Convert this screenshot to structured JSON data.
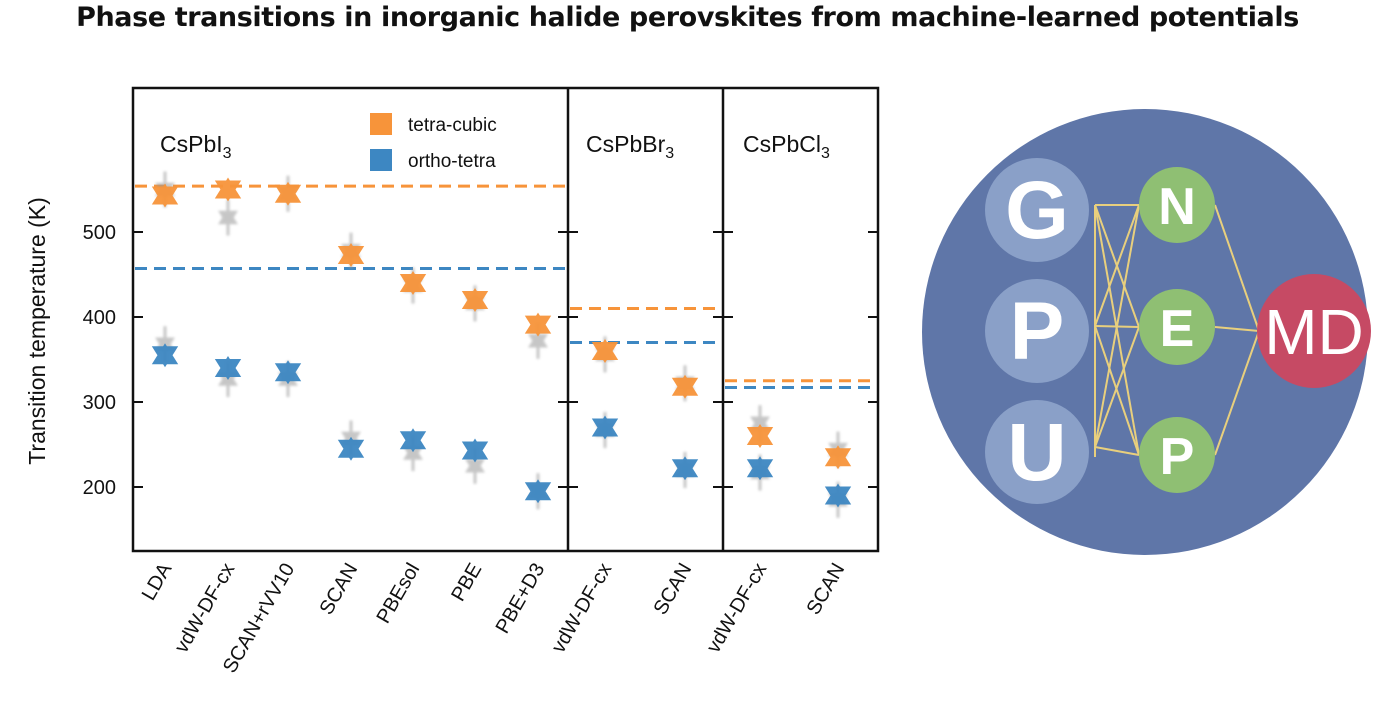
{
  "title": "Phase transitions in inorganic halide perovskites from machine-learned potentials",
  "chart_data": {
    "type": "scatter",
    "ylabel": "Transition temperature (K)",
    "ylim": [
      150,
      700
    ],
    "yticks": [
      200,
      300,
      400,
      500
    ],
    "grid": false,
    "legend_position": "top",
    "series": [
      {
        "name": "tetra-cubic",
        "color": "#f7943a"
      },
      {
        "name": "ortho-tetra",
        "color": "#3d87c2"
      }
    ],
    "panels": [
      {
        "name": "CsPbI",
        "name_sub": "3",
        "categories": [
          "LDA",
          "vdW-DF-cx",
          "SCAN+rVV10",
          "SCAN",
          "PBEsol",
          "PBE",
          "PBE+D3"
        ],
        "tetra_cubic": [
          543,
          550,
          545,
          473,
          440,
          420,
          391
        ],
        "ortho_tetra": [
          355,
          340,
          335,
          245,
          255,
          243,
          195
        ],
        "tetra_cubic_alt": [
          550,
          517,
          545,
          478,
          437,
          416,
          372
        ],
        "ortho_tetra_alt": [
          368,
          327,
          327,
          257,
          240,
          225,
          195
        ],
        "experiment_tetra_cubic": 554,
        "experiment_ortho_tetra": 457
      },
      {
        "name": "CsPbBr",
        "name_sub": "3",
        "categories": [
          "vdW-DF-cx",
          "SCAN"
        ],
        "tetra_cubic": [
          360,
          318
        ],
        "ortho_tetra": [
          270,
          222
        ],
        "tetra_cubic_alt": [
          356,
          322
        ],
        "ortho_tetra_alt": [
          267,
          220
        ],
        "experiment_tetra_cubic": 410,
        "experiment_ortho_tetra": 370
      },
      {
        "name": "CsPbCl",
        "name_sub": "3",
        "categories": [
          "vdW-DF-cx",
          "SCAN"
        ],
        "tetra_cubic": [
          260,
          235
        ],
        "ortho_tetra": [
          222,
          190
        ],
        "tetra_cubic_alt": [
          275,
          244
        ],
        "ortho_tetra_alt": [
          217,
          185
        ],
        "experiment_tetra_cubic": 325,
        "experiment_ortho_tetra": 317
      }
    ]
  },
  "graphic": {
    "left_letters": [
      "G",
      "P",
      "U"
    ],
    "right_letters": [
      "N",
      "E",
      "P"
    ],
    "output_label": "MD",
    "colors": {
      "background": "#5f76a8",
      "left_node": "#8aa0c8",
      "right_node": "#8fbf73",
      "output_node": "#c64a64",
      "edge": "#e8cf7d"
    }
  }
}
